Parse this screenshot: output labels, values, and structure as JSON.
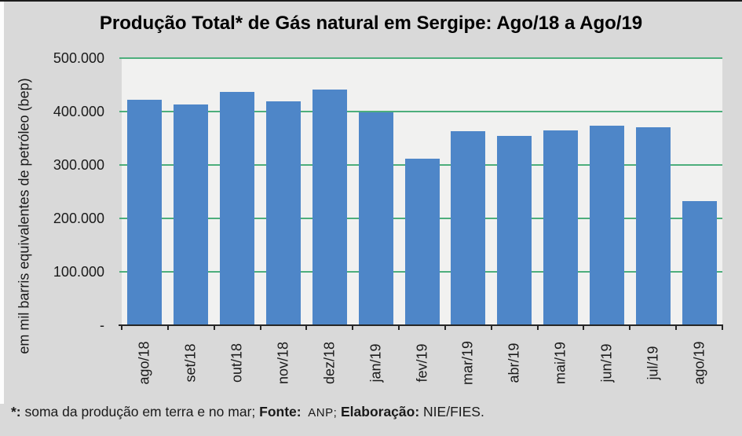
{
  "page": {
    "footer": {
      "asterisk": "*: ",
      "note": "soma da produção em terra e no mar; ",
      "fonte_label": "Fonte: ",
      "fonte_value": " ANP; ",
      "elab_label": "Elaboração: ",
      "elab_value": "NIE/FIES."
    }
  },
  "chart_data": {
    "type": "bar",
    "title": "Produção Total* de Gás natural em Sergipe: Ago/18 a Ago/19",
    "xlabel": "",
    "ylabel": "em mil barris equivalentes de petróleo (bep)",
    "categories": [
      "ago/18",
      "set/18",
      "out/18",
      "nov/18",
      "dez/18",
      "jan/19",
      "fev/19",
      "mar/19",
      "abr/19",
      "mai/19",
      "jun/19",
      "jul/19",
      "ago/19"
    ],
    "values": [
      422000,
      413000,
      437000,
      419000,
      441000,
      399000,
      312000,
      363000,
      355000,
      365000,
      374000,
      370000,
      233000
    ],
    "ylim": [
      0,
      500000
    ],
    "y_ticks": [
      {
        "label": "500.000",
        "value": 500000
      },
      {
        "label": "400.000",
        "value": 400000
      },
      {
        "label": "300.000",
        "value": 300000
      },
      {
        "label": "200.000",
        "value": 200000
      },
      {
        "label": "100.000",
        "value": 100000
      },
      {
        "label": "-",
        "value": 0
      }
    ],
    "grid": true,
    "legend": "none",
    "colors": {
      "bar": "#4E86C8",
      "gridline": "#4DAE7C",
      "plot_bg": "#F1F1F0",
      "outer_bg": "#D9D9D9",
      "axis": "#262626",
      "text": "#000000"
    }
  }
}
